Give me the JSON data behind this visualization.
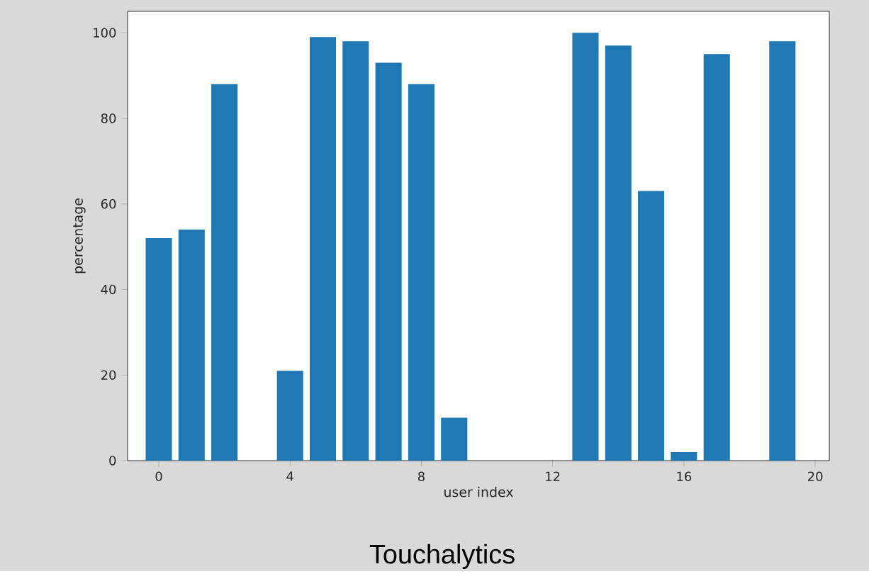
{
  "chart_data": {
    "type": "bar",
    "xlabel": "user index",
    "ylabel": "percentage",
    "x": [
      0,
      1,
      2,
      4,
      5,
      6,
      7,
      8,
      9,
      13,
      14,
      15,
      16,
      17,
      19
    ],
    "values": [
      52,
      54,
      88,
      21,
      99,
      98,
      93,
      88,
      10,
      100,
      97,
      63,
      2,
      95,
      98
    ],
    "color": "#1f77b4",
    "xlim": [
      -0.95,
      20.43
    ],
    "ylim": [
      0,
      105
    ],
    "xticks": [
      0,
      4,
      8,
      12,
      16,
      20
    ],
    "yticks": [
      0,
      20,
      40,
      60,
      80,
      100
    ],
    "annotations": [
      "Touchalytics"
    ]
  }
}
